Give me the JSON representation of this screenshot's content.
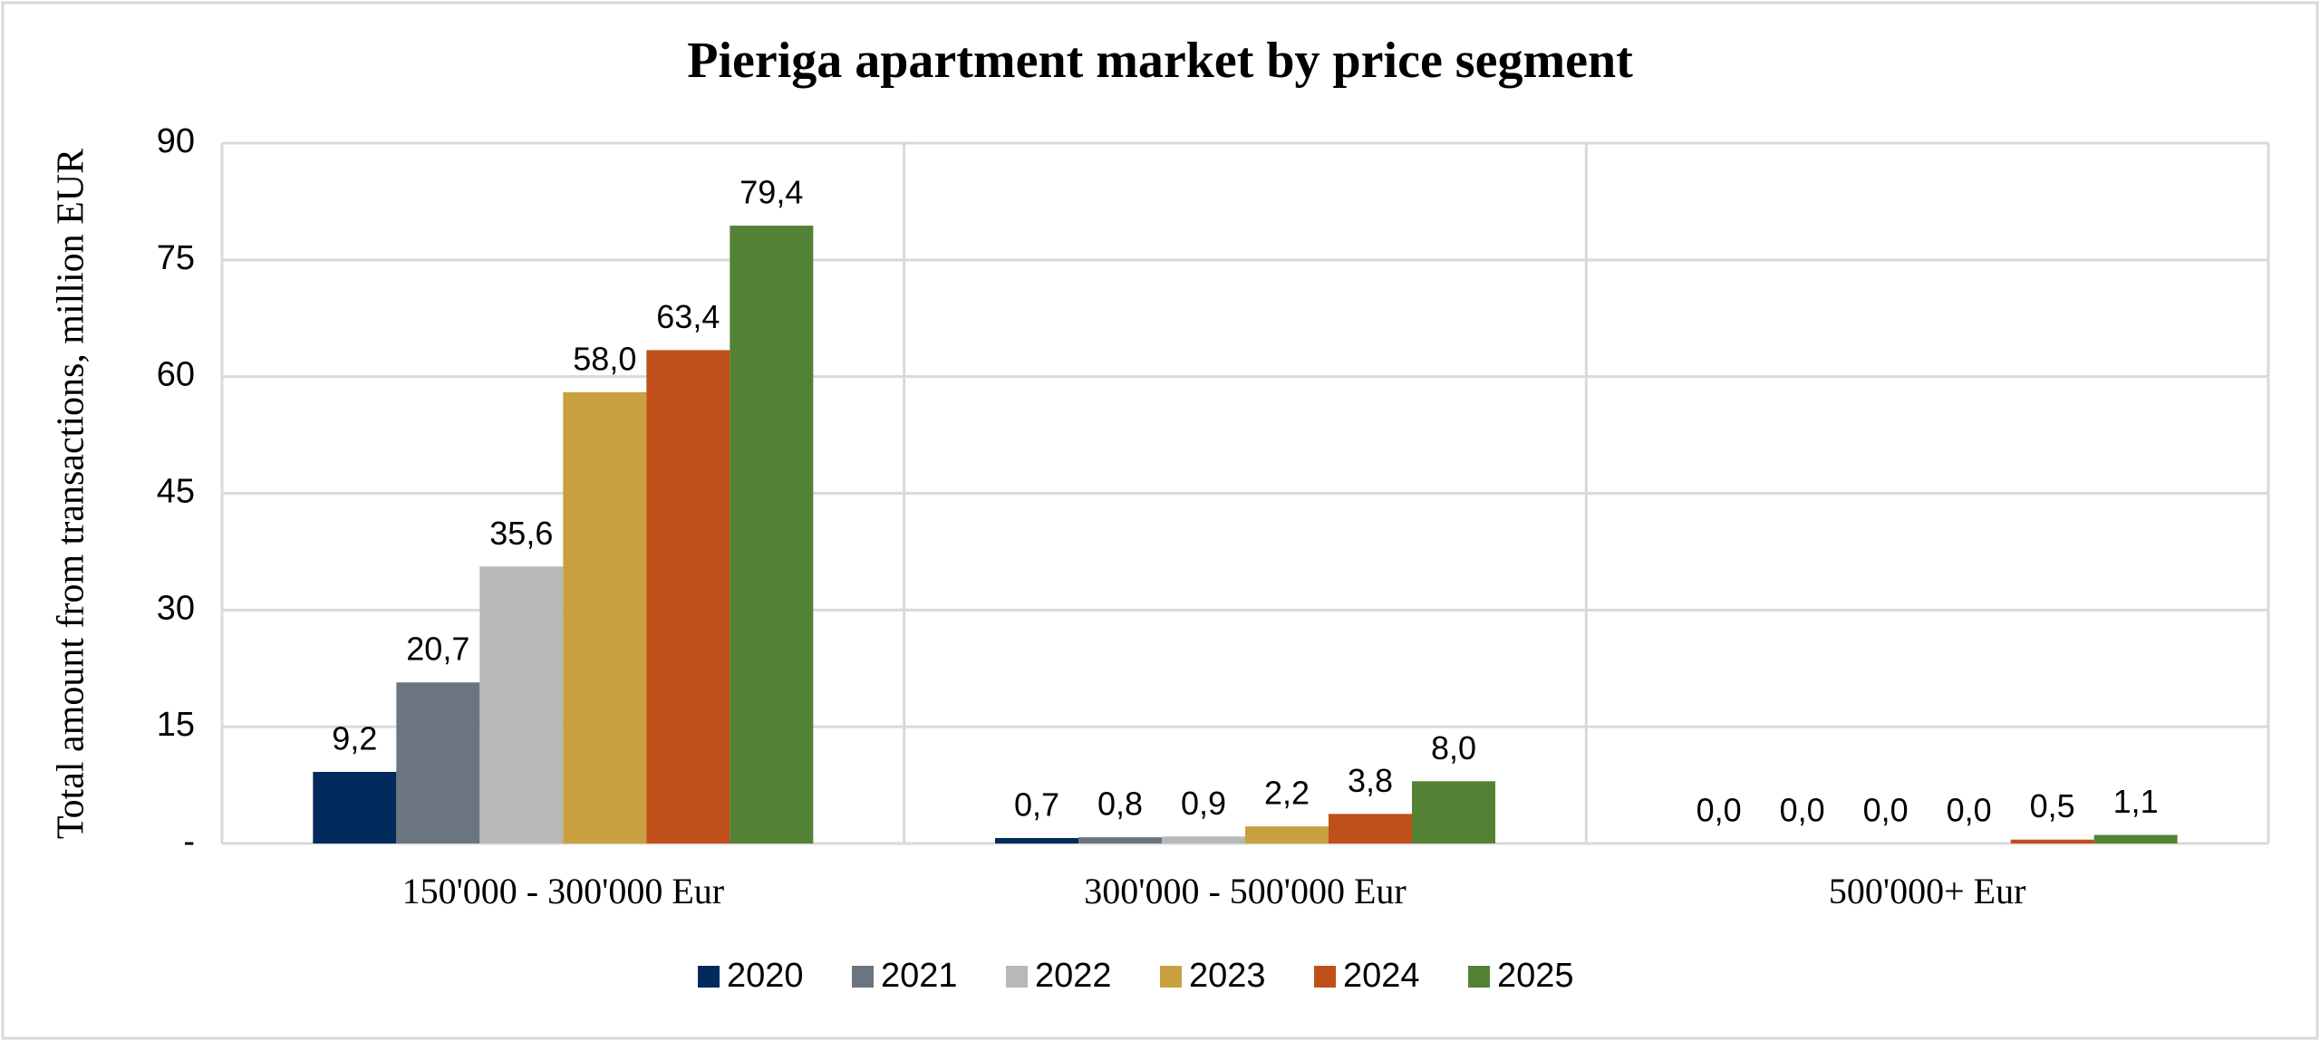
{
  "chart_data": {
    "type": "bar",
    "title": "Pieriga apartment market by price segment",
    "y_label": "Total amount from transactions, million EUR",
    "categories": [
      "150'000 - 300'000 Eur",
      "300'000 - 500'000 Eur",
      "500'000+ Eur"
    ],
    "series": [
      {
        "name": "2020",
        "color": "#002b5c",
        "values": [
          9.2,
          0.7,
          0.0
        ],
        "value_labels": [
          "9,2",
          "0,7",
          "0,0"
        ]
      },
      {
        "name": "2021",
        "color": "#6b7580",
        "values": [
          20.7,
          0.8,
          0.0
        ],
        "value_labels": [
          "20,7",
          "0,8",
          "0,0"
        ]
      },
      {
        "name": "2022",
        "color": "#b8b8b8",
        "values": [
          35.6,
          0.9,
          0.0
        ],
        "value_labels": [
          "35,6",
          "0,9",
          "0,0"
        ]
      },
      {
        "name": "2023",
        "color": "#c9a040",
        "values": [
          58.0,
          2.2,
          0.0
        ],
        "value_labels": [
          "58,0",
          "2,2",
          "0,0"
        ]
      },
      {
        "name": "2024",
        "color": "#c0501a",
        "values": [
          63.4,
          3.8,
          0.5
        ],
        "value_labels": [
          "63,4",
          "3,8",
          "0,5"
        ]
      },
      {
        "name": "2025",
        "color": "#548235",
        "values": [
          79.4,
          8.0,
          1.1
        ],
        "value_labels": [
          "79,4",
          "8,0",
          "1,1"
        ]
      }
    ],
    "ylim": [
      0,
      90
    ],
    "yticks": [
      {
        "value": 0,
        "label": "-"
      },
      15,
      30,
      45,
      60,
      75,
      90
    ],
    "grid": true,
    "legend": "bottom"
  }
}
